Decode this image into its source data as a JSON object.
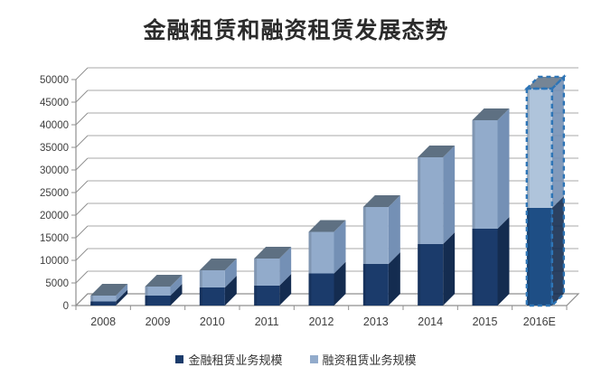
{
  "title": "金融租赁和融资租赁发展态势",
  "chart_data": {
    "type": "bar",
    "variant": "3d-stacked-column",
    "title": "金融租赁和融资租赁发展态势",
    "categories": [
      "2008",
      "2009",
      "2010",
      "2011",
      "2012",
      "2013",
      "2014",
      "2015",
      "2016E"
    ],
    "series": [
      {
        "name": "金融租赁业务规模",
        "color": "#1B3B6B",
        "side_color": "#142C50",
        "values": [
          900,
          2200,
          4000,
          4400,
          7100,
          9200,
          13600,
          17000,
          21600
        ]
      },
      {
        "name": "融资租赁业务规模",
        "color": "#92ABCB",
        "side_color": "#7490B5",
        "top_color": "#5E7082",
        "values": [
          1300,
          2000,
          3800,
          6000,
          9200,
          12600,
          19200,
          24000,
          26400
        ]
      }
    ],
    "estimated_categories": [
      "2016E"
    ],
    "estimated_outline_color": "#2E75B6",
    "estimated_fills": [
      "#1E4E85",
      "#AFC4DB"
    ],
    "ylim": [
      0,
      50000
    ],
    "yticks": [
      0,
      5000,
      10000,
      15000,
      20000,
      25000,
      30000,
      35000,
      40000,
      45000,
      50000
    ],
    "grid": true,
    "legend_position": "bottom",
    "grid_color": "#A8A8A8",
    "axis_color": "#8F8F8F",
    "tick_label_color": "#3E3E3E"
  }
}
